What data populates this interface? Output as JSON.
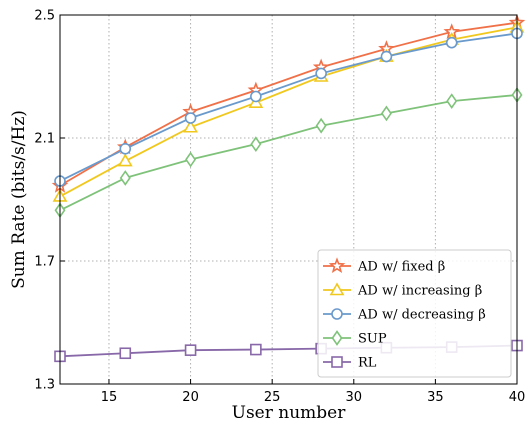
{
  "chart_data": {
    "type": "line",
    "title": "",
    "xlabel": "User number",
    "ylabel": "Sum Rate (bits/s/Hz)",
    "xlim": [
      12,
      40
    ],
    "ylim": [
      1.3,
      2.5
    ],
    "xticks": [
      15,
      20,
      25,
      30,
      35,
      40
    ],
    "yticks": [
      1.3,
      1.7,
      2.1,
      2.5
    ],
    "grid": true,
    "legend_position": "bottom-right",
    "x": [
      12,
      16,
      20,
      24,
      28,
      32,
      36,
      40
    ],
    "series": [
      {
        "name": "AD w/ fixed β",
        "marker": "star",
        "color": "#f07048",
        "values": [
          1.945,
          2.07,
          2.185,
          2.255,
          2.33,
          2.39,
          2.445,
          2.475
        ]
      },
      {
        "name": "AD w/ increasing β",
        "marker": "triangle",
        "color": "#f0c81e",
        "values": [
          1.91,
          2.025,
          2.135,
          2.215,
          2.3,
          2.365,
          2.42,
          2.46
        ]
      },
      {
        "name": "AD w/ decreasing β",
        "marker": "circle",
        "color": "#6a9acc",
        "values": [
          1.96,
          2.065,
          2.165,
          2.235,
          2.31,
          2.365,
          2.41,
          2.44
        ]
      },
      {
        "name": "SUP",
        "marker": "diamond",
        "color": "#7fc27a",
        "values": [
          1.865,
          1.97,
          2.03,
          2.08,
          2.14,
          2.18,
          2.22,
          2.24
        ]
      },
      {
        "name": "RL",
        "marker": "square",
        "color": "#8868a8",
        "values": [
          1.39,
          1.4,
          1.41,
          1.412,
          1.415,
          1.418,
          1.42,
          1.425
        ]
      }
    ]
  }
}
